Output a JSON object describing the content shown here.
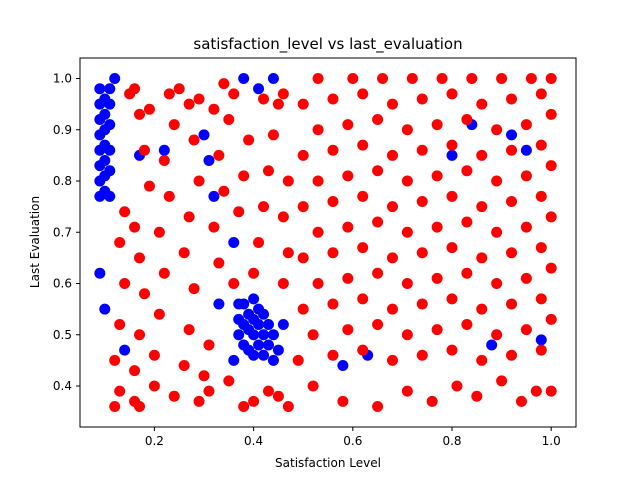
{
  "chart_data": {
    "type": "scatter",
    "title": "satisfaction_level vs last_evaluation",
    "xlabel": "Satisfaction Level",
    "ylabel": "Last Evaluation",
    "xlim": [
      0.05,
      1.05
    ],
    "ylim": [
      0.32,
      1.04
    ],
    "xticks": [
      0.2,
      0.4,
      0.6,
      0.8,
      1.0
    ],
    "xtick_labels": [
      "0.2",
      "0.4",
      "0.6",
      "0.8",
      "1.0"
    ],
    "yticks": [
      0.4,
      0.5,
      0.6,
      0.7,
      0.8,
      0.9,
      1.0
    ],
    "ytick_labels": [
      "0.4",
      "0.5",
      "0.6",
      "0.7",
      "0.8",
      "0.9",
      "1.0"
    ],
    "grid": false,
    "series": [
      {
        "color": "#0000ff",
        "points": [
          [
            0.09,
            0.77
          ],
          [
            0.09,
            0.8
          ],
          [
            0.09,
            0.83
          ],
          [
            0.09,
            0.86
          ],
          [
            0.09,
            0.89
          ],
          [
            0.09,
            0.92
          ],
          [
            0.09,
            0.95
          ],
          [
            0.09,
            0.98
          ],
          [
            0.1,
            0.78
          ],
          [
            0.1,
            0.81
          ],
          [
            0.1,
            0.84
          ],
          [
            0.1,
            0.87
          ],
          [
            0.1,
            0.9
          ],
          [
            0.1,
            0.93
          ],
          [
            0.1,
            0.96
          ],
          [
            0.11,
            0.77
          ],
          [
            0.11,
            0.82
          ],
          [
            0.11,
            0.86
          ],
          [
            0.11,
            0.91
          ],
          [
            0.11,
            0.95
          ],
          [
            0.11,
            0.98
          ],
          [
            0.09,
            0.62
          ],
          [
            0.1,
            0.55
          ],
          [
            0.12,
            1.0
          ],
          [
            0.14,
            0.47
          ],
          [
            0.17,
            0.85
          ],
          [
            0.22,
            0.86
          ],
          [
            0.3,
            0.89
          ],
          [
            0.31,
            0.84
          ],
          [
            0.32,
            0.77
          ],
          [
            0.33,
            0.56
          ],
          [
            0.36,
            0.68
          ],
          [
            0.38,
            1.0
          ],
          [
            0.41,
            0.98
          ],
          [
            0.44,
            1.0
          ],
          [
            0.37,
            0.5
          ],
          [
            0.37,
            0.53
          ],
          [
            0.38,
            0.48
          ],
          [
            0.38,
            0.52
          ],
          [
            0.38,
            0.56
          ],
          [
            0.39,
            0.47
          ],
          [
            0.39,
            0.51
          ],
          [
            0.39,
            0.54
          ],
          [
            0.4,
            0.46
          ],
          [
            0.4,
            0.5
          ],
          [
            0.4,
            0.53
          ],
          [
            0.4,
            0.57
          ],
          [
            0.41,
            0.48
          ],
          [
            0.41,
            0.52
          ],
          [
            0.41,
            0.55
          ],
          [
            0.42,
            0.46
          ],
          [
            0.42,
            0.5
          ],
          [
            0.42,
            0.54
          ],
          [
            0.43,
            0.48
          ],
          [
            0.43,
            0.52
          ],
          [
            0.44,
            0.45
          ],
          [
            0.44,
            0.5
          ],
          [
            0.45,
            0.47
          ],
          [
            0.46,
            0.52
          ],
          [
            0.36,
            0.45
          ],
          [
            0.37,
            0.56
          ],
          [
            0.58,
            0.44
          ],
          [
            0.63,
            0.46
          ],
          [
            0.8,
            0.85
          ],
          [
            0.84,
            0.91
          ],
          [
            0.88,
            0.48
          ],
          [
            0.92,
            0.89
          ],
          [
            0.95,
            0.86
          ],
          [
            0.98,
            0.49
          ]
        ]
      },
      {
        "color": "#ff0000",
        "points": [
          [
            0.12,
            0.36
          ],
          [
            0.13,
            0.39
          ],
          [
            0.16,
            0.37
          ],
          [
            0.17,
            0.36
          ],
          [
            0.2,
            0.4
          ],
          [
            0.24,
            0.38
          ],
          [
            0.29,
            0.37
          ],
          [
            0.31,
            0.39
          ],
          [
            0.35,
            0.41
          ],
          [
            0.38,
            0.36
          ],
          [
            0.4,
            0.37
          ],
          [
            0.43,
            0.39
          ],
          [
            0.45,
            0.38
          ],
          [
            0.47,
            0.36
          ],
          [
            0.52,
            0.4
          ],
          [
            0.58,
            0.37
          ],
          [
            0.65,
            0.36
          ],
          [
            0.71,
            0.39
          ],
          [
            0.76,
            0.37
          ],
          [
            0.81,
            0.4
          ],
          [
            0.85,
            0.38
          ],
          [
            0.9,
            0.41
          ],
          [
            0.94,
            0.37
          ],
          [
            0.97,
            0.39
          ],
          [
            1.0,
            0.39
          ],
          [
            0.12,
            0.45
          ],
          [
            0.13,
            0.52
          ],
          [
            0.14,
            0.6
          ],
          [
            0.13,
            0.68
          ],
          [
            0.14,
            0.74
          ],
          [
            0.16,
            0.43
          ],
          [
            0.17,
            0.5
          ],
          [
            0.18,
            0.58
          ],
          [
            0.17,
            0.65
          ],
          [
            0.16,
            0.71
          ],
          [
            0.19,
            0.79
          ],
          [
            0.18,
            0.86
          ],
          [
            0.17,
            0.93
          ],
          [
            0.16,
            0.98
          ],
          [
            0.2,
            0.46
          ],
          [
            0.21,
            0.54
          ],
          [
            0.22,
            0.62
          ],
          [
            0.21,
            0.7
          ],
          [
            0.23,
            0.77
          ],
          [
            0.22,
            0.84
          ],
          [
            0.24,
            0.91
          ],
          [
            0.23,
            0.97
          ],
          [
            0.26,
            0.44
          ],
          [
            0.27,
            0.51
          ],
          [
            0.28,
            0.59
          ],
          [
            0.26,
            0.66
          ],
          [
            0.27,
            0.73
          ],
          [
            0.29,
            0.8
          ],
          [
            0.28,
            0.88
          ],
          [
            0.27,
            0.95
          ],
          [
            0.3,
            0.42
          ],
          [
            0.31,
            0.48
          ],
          [
            0.33,
            0.64
          ],
          [
            0.32,
            0.71
          ],
          [
            0.34,
            0.78
          ],
          [
            0.33,
            0.85
          ],
          [
            0.35,
            0.92
          ],
          [
            0.34,
            0.99
          ],
          [
            0.36,
            0.6
          ],
          [
            0.37,
            0.74
          ],
          [
            0.38,
            0.81
          ],
          [
            0.39,
            0.88
          ],
          [
            0.4,
            0.62
          ],
          [
            0.41,
            0.68
          ],
          [
            0.42,
            0.75
          ],
          [
            0.43,
            0.82
          ],
          [
            0.44,
            0.89
          ],
          [
            0.45,
            0.95
          ],
          [
            0.46,
            0.6
          ],
          [
            0.47,
            0.66
          ],
          [
            0.46,
            0.73
          ],
          [
            0.47,
            0.8
          ],
          [
            0.15,
            0.97
          ],
          [
            0.19,
            0.94
          ],
          [
            0.25,
            0.98
          ],
          [
            0.29,
            0.96
          ],
          [
            0.32,
            0.94
          ],
          [
            0.36,
            0.97
          ],
          [
            0.42,
            0.96
          ],
          [
            0.46,
            0.97
          ],
          [
            0.49,
            0.45
          ],
          [
            0.5,
            0.55
          ],
          [
            0.5,
            0.65
          ],
          [
            0.5,
            0.75
          ],
          [
            0.5,
            0.85
          ],
          [
            0.5,
            0.95
          ],
          [
            0.52,
            0.5
          ],
          [
            0.53,
            0.6
          ],
          [
            0.53,
            0.7
          ],
          [
            0.53,
            0.8
          ],
          [
            0.53,
            0.9
          ],
          [
            0.53,
            1.0
          ],
          [
            0.56,
            0.46
          ],
          [
            0.56,
            0.56
          ],
          [
            0.56,
            0.66
          ],
          [
            0.56,
            0.76
          ],
          [
            0.56,
            0.86
          ],
          [
            0.56,
            0.96
          ],
          [
            0.59,
            0.51
          ],
          [
            0.59,
            0.61
          ],
          [
            0.59,
            0.71
          ],
          [
            0.59,
            0.81
          ],
          [
            0.59,
            0.91
          ],
          [
            0.6,
            1.0
          ],
          [
            0.62,
            0.47
          ],
          [
            0.62,
            0.57
          ],
          [
            0.62,
            0.67
          ],
          [
            0.62,
            0.77
          ],
          [
            0.62,
            0.87
          ],
          [
            0.62,
            0.97
          ],
          [
            0.65,
            0.52
          ],
          [
            0.65,
            0.62
          ],
          [
            0.65,
            0.72
          ],
          [
            0.65,
            0.82
          ],
          [
            0.65,
            0.92
          ],
          [
            0.66,
            1.0
          ],
          [
            0.68,
            0.45
          ],
          [
            0.68,
            0.55
          ],
          [
            0.68,
            0.65
          ],
          [
            0.68,
            0.75
          ],
          [
            0.68,
            0.85
          ],
          [
            0.68,
            0.95
          ],
          [
            0.71,
            0.5
          ],
          [
            0.71,
            0.6
          ],
          [
            0.71,
            0.7
          ],
          [
            0.71,
            0.8
          ],
          [
            0.71,
            0.9
          ],
          [
            0.72,
            1.0
          ],
          [
            0.74,
            0.46
          ],
          [
            0.74,
            0.56
          ],
          [
            0.74,
            0.66
          ],
          [
            0.74,
            0.76
          ],
          [
            0.74,
            0.86
          ],
          [
            0.74,
            0.96
          ],
          [
            0.77,
            0.51
          ],
          [
            0.77,
            0.61
          ],
          [
            0.77,
            0.71
          ],
          [
            0.77,
            0.81
          ],
          [
            0.77,
            0.91
          ],
          [
            0.78,
            1.0
          ],
          [
            0.8,
            0.47
          ],
          [
            0.8,
            0.57
          ],
          [
            0.8,
            0.67
          ],
          [
            0.8,
            0.77
          ],
          [
            0.8,
            0.87
          ],
          [
            0.8,
            0.97
          ],
          [
            0.83,
            0.52
          ],
          [
            0.83,
            0.62
          ],
          [
            0.83,
            0.72
          ],
          [
            0.83,
            0.82
          ],
          [
            0.83,
            0.92
          ],
          [
            0.84,
            1.0
          ],
          [
            0.86,
            0.45
          ],
          [
            0.86,
            0.55
          ],
          [
            0.86,
            0.65
          ],
          [
            0.86,
            0.75
          ],
          [
            0.86,
            0.85
          ],
          [
            0.86,
            0.95
          ],
          [
            0.89,
            0.5
          ],
          [
            0.89,
            0.6
          ],
          [
            0.89,
            0.7
          ],
          [
            0.89,
            0.8
          ],
          [
            0.89,
            0.9
          ],
          [
            0.9,
            1.0
          ],
          [
            0.92,
            0.46
          ],
          [
            0.92,
            0.56
          ],
          [
            0.92,
            0.66
          ],
          [
            0.92,
            0.76
          ],
          [
            0.92,
            0.86
          ],
          [
            0.92,
            0.96
          ],
          [
            0.95,
            0.51
          ],
          [
            0.95,
            0.61
          ],
          [
            0.95,
            0.71
          ],
          [
            0.95,
            0.81
          ],
          [
            0.95,
            0.91
          ],
          [
            0.96,
            1.0
          ],
          [
            0.98,
            0.47
          ],
          [
            0.98,
            0.57
          ],
          [
            0.98,
            0.67
          ],
          [
            0.98,
            0.77
          ],
          [
            0.98,
            0.87
          ],
          [
            0.98,
            0.97
          ],
          [
            1.0,
            0.53
          ],
          [
            1.0,
            0.63
          ],
          [
            1.0,
            0.73
          ],
          [
            1.0,
            0.83
          ],
          [
            1.0,
            0.93
          ],
          [
            1.0,
            1.0
          ]
        ]
      }
    ]
  }
}
